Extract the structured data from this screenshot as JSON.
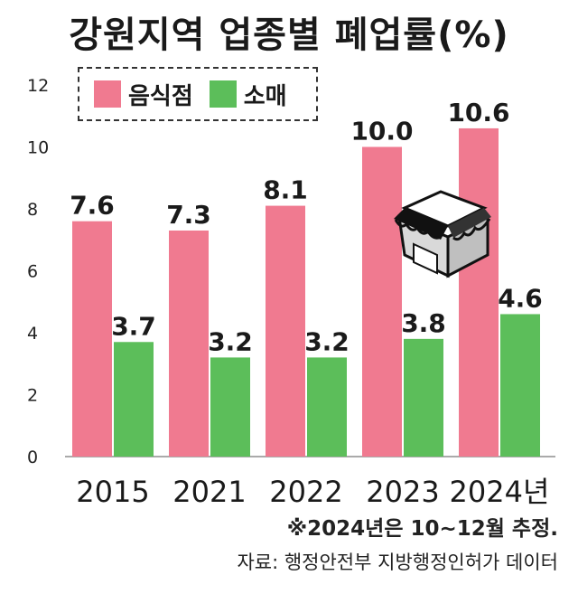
{
  "title": "강원지역 업종별 폐업률(%)",
  "legend": {
    "restaurant": "음식점",
    "retail": "소매"
  },
  "colors": {
    "restaurant": "#f07a90",
    "retail": "#5cbe5a"
  },
  "note": "※2024년은 10~12월 추정.",
  "source": "자료: 행정안전부 지방행정인허가 데이터",
  "chart_data": {
    "type": "bar",
    "title": "강원지역 업종별 폐업률(%)",
    "categories": [
      "2015",
      "2021",
      "2022",
      "2023",
      "2024년"
    ],
    "series": [
      {
        "name": "음식점",
        "values": [
          7.6,
          7.3,
          8.1,
          10.0,
          10.6
        ],
        "labels": [
          "7.6",
          "7.3",
          "8.1",
          "10.0",
          "10.6"
        ]
      },
      {
        "name": "소매",
        "values": [
          3.7,
          3.2,
          3.2,
          3.8,
          4.6
        ],
        "labels": [
          "3.7",
          "3.2",
          "3.2",
          "3.8",
          "4.6"
        ]
      }
    ],
    "yticks": [
      "0",
      "2",
      "4",
      "6",
      "8",
      "10",
      "12"
    ],
    "ylim": [
      0,
      12
    ],
    "grid": false,
    "legend_position": "top-left"
  }
}
